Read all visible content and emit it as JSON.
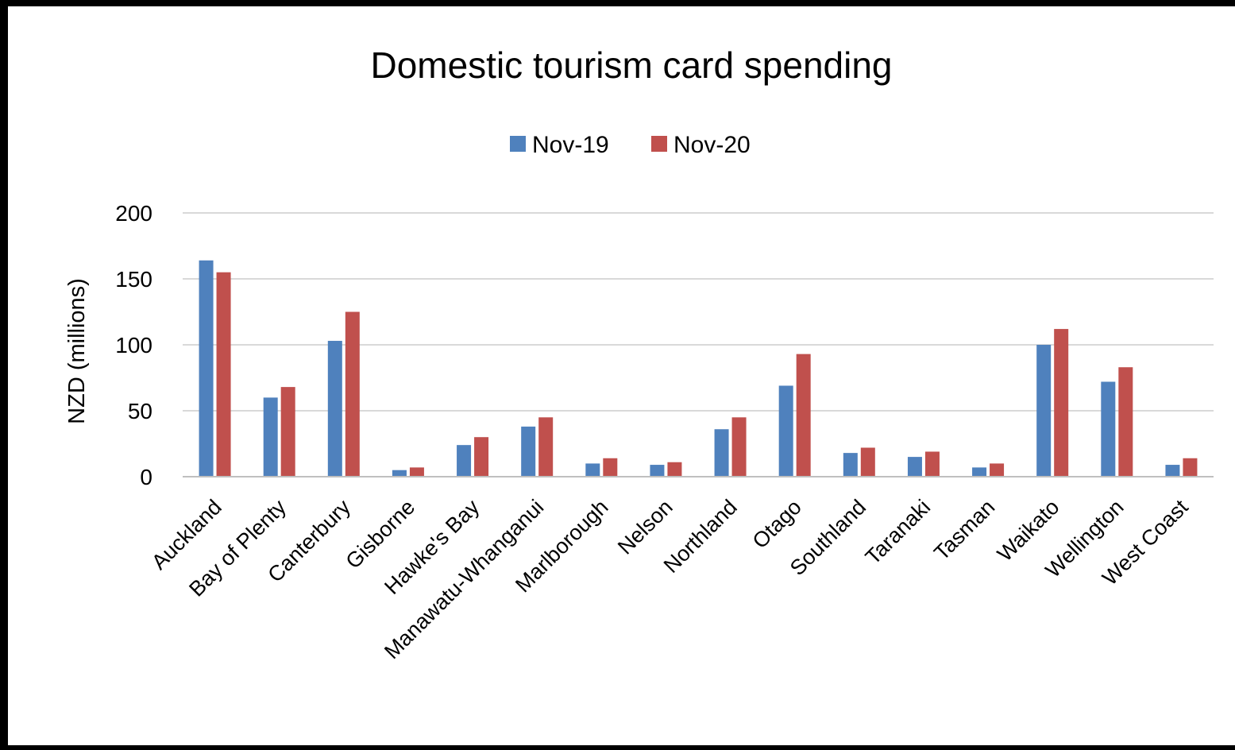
{
  "chart_data": {
    "type": "bar",
    "title": "Domestic tourism card spending",
    "ylabel": "NZD (millions)",
    "xlabel": "",
    "ylim": [
      0,
      200
    ],
    "yticks": [
      0,
      50,
      100,
      150,
      200
    ],
    "grid": true,
    "legend_position": "top",
    "categories": [
      "Auckland",
      "Bay of Plenty",
      "Canterbury",
      "Gisborne",
      "Hawke's Bay",
      "Manawatu-Whanganui",
      "Marlborough",
      "Nelson",
      "Northland",
      "Otago",
      "Southland",
      "Taranaki",
      "Tasman",
      "Waikato",
      "Wellington",
      "West Coast"
    ],
    "series": [
      {
        "name": "Nov-19",
        "color": "#4f81bd",
        "values": [
          164,
          60,
          103,
          5,
          24,
          38,
          10,
          9,
          36,
          69,
          18,
          15,
          7,
          100,
          72,
          9
        ]
      },
      {
        "name": "Nov-20",
        "color": "#c0504d",
        "values": [
          155,
          68,
          125,
          7,
          30,
          45,
          14,
          11,
          45,
          93,
          22,
          19,
          10,
          112,
          83,
          14
        ]
      }
    ]
  }
}
